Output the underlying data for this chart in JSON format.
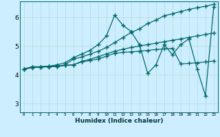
{
  "xlabel": "Humidex (Indice chaleur)",
  "bg_color": "#cceeff",
  "line_color": "#006666",
  "grid_color": "#bbdddd",
  "xlim": [
    -0.5,
    23.5
  ],
  "ylim": [
    2.7,
    6.55
  ],
  "xticks": [
    0,
    1,
    2,
    3,
    4,
    5,
    6,
    7,
    8,
    9,
    10,
    11,
    12,
    13,
    14,
    15,
    16,
    17,
    18,
    19,
    20,
    21,
    22,
    23
  ],
  "yticks": [
    3,
    4,
    5,
    6
  ],
  "series": [
    [
      4.2,
      4.25,
      4.27,
      4.28,
      4.3,
      4.35,
      4.55,
      4.62,
      4.72,
      4.82,
      4.95,
      5.12,
      5.3,
      5.47,
      5.6,
      5.78,
      5.9,
      6.05,
      6.12,
      6.2,
      6.27,
      6.33,
      6.38,
      6.45
    ],
    [
      4.2,
      4.28,
      4.28,
      4.29,
      4.3,
      4.33,
      4.35,
      4.47,
      4.54,
      4.63,
      4.73,
      4.82,
      4.89,
      4.95,
      5.0,
      5.05,
      5.1,
      5.15,
      5.2,
      5.25,
      5.3,
      5.35,
      5.4,
      5.45
    ],
    [
      4.2,
      4.27,
      4.28,
      4.3,
      4.35,
      4.42,
      4.6,
      4.72,
      4.85,
      5.05,
      5.35,
      6.07,
      5.72,
      5.5,
      5.05,
      4.05,
      4.35,
      5.05,
      4.7,
      5.05,
      5.25,
      4.2,
      3.28,
      6.35
    ],
    [
      4.2,
      4.28,
      4.28,
      4.3,
      4.3,
      4.33,
      4.35,
      4.45,
      4.5,
      4.55,
      4.65,
      4.75,
      4.78,
      4.8,
      4.82,
      4.85,
      4.88,
      4.9,
      4.92,
      4.38,
      4.4,
      4.42,
      4.45,
      4.48
    ]
  ],
  "marker": "+",
  "markersize": 4,
  "linewidth": 0.9
}
